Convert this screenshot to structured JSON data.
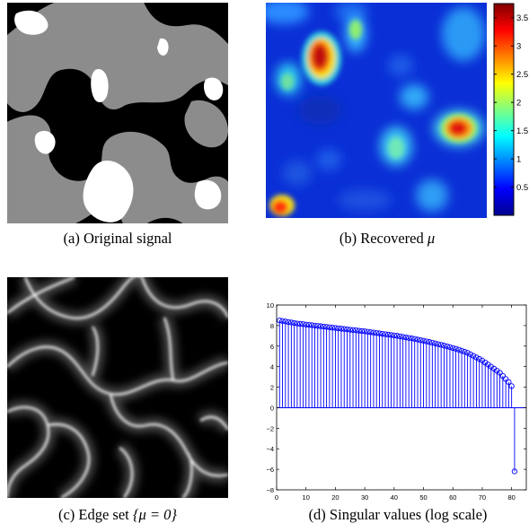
{
  "figure": {
    "panels": [
      {
        "caption_prefix": "(a) Original signal",
        "caption_math": ""
      },
      {
        "caption_prefix": "(b) Recovered ",
        "caption_math": "μ"
      },
      {
        "caption_prefix": "(c) Edge set ",
        "caption_math": "{μ = 0}"
      },
      {
        "caption_prefix": "(d) Singular values (log scale)",
        "caption_math": ""
      }
    ]
  },
  "colorbar": {
    "ticks": [
      "3.5",
      "3",
      "2.5",
      "2",
      "1.5",
      "1",
      "0.5"
    ],
    "tick_values": [
      3.5,
      3,
      2.5,
      2,
      1.5,
      1,
      0.5
    ],
    "range": [
      0,
      3.75
    ]
  },
  "chart_data": {
    "type": "stem",
    "title": "",
    "xlabel": "",
    "ylabel": "",
    "xlim": [
      0,
      85
    ],
    "ylim": [
      -8,
      10
    ],
    "xticks": [
      0,
      10,
      20,
      30,
      40,
      50,
      60,
      70,
      80
    ],
    "yticks": [
      10,
      8,
      6,
      4,
      2,
      0,
      -2,
      -4,
      -6,
      -8
    ],
    "x": [
      1,
      2,
      3,
      4,
      5,
      6,
      7,
      8,
      9,
      10,
      11,
      12,
      13,
      14,
      15,
      16,
      17,
      18,
      19,
      20,
      21,
      22,
      23,
      24,
      25,
      26,
      27,
      28,
      29,
      30,
      31,
      32,
      33,
      34,
      35,
      36,
      37,
      38,
      39,
      40,
      41,
      42,
      43,
      44,
      45,
      46,
      47,
      48,
      49,
      50,
      51,
      52,
      53,
      54,
      55,
      56,
      57,
      58,
      59,
      60,
      61,
      62,
      63,
      64,
      65,
      66,
      67,
      68,
      69,
      70,
      71,
      72,
      73,
      74,
      75,
      76,
      77,
      78,
      79,
      80,
      81
    ],
    "values": [
      8.5,
      8.45,
      8.4,
      8.35,
      8.3,
      8.25,
      8.2,
      8.17,
      8.14,
      8.1,
      8.07,
      8.04,
      8.0,
      7.97,
      7.94,
      7.9,
      7.87,
      7.84,
      7.8,
      7.77,
      7.74,
      7.7,
      7.67,
      7.64,
      7.6,
      7.57,
      7.54,
      7.5,
      7.47,
      7.44,
      7.4,
      7.36,
      7.32,
      7.28,
      7.24,
      7.2,
      7.16,
      7.12,
      7.08,
      7.04,
      7.0,
      6.95,
      6.9,
      6.85,
      6.8,
      6.75,
      6.7,
      6.64,
      6.58,
      6.52,
      6.46,
      6.4,
      6.33,
      6.26,
      6.19,
      6.12,
      6.05,
      5.98,
      5.9,
      5.82,
      5.74,
      5.65,
      5.55,
      5.45,
      5.35,
      5.2,
      5.05,
      4.9,
      4.75,
      4.6,
      4.4,
      4.2,
      4.0,
      3.8,
      3.6,
      3.4,
      3.1,
      2.8,
      2.5,
      2.1,
      -6.2
    ],
    "series_color": "#0000ff"
  }
}
